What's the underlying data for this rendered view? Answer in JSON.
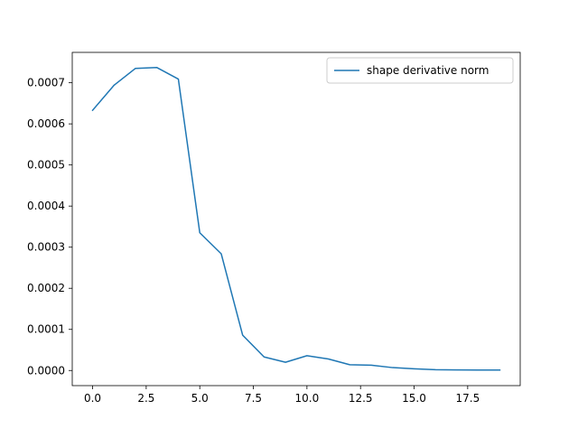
{
  "chart_data": {
    "type": "line",
    "x": [
      0,
      1,
      2,
      3,
      4,
      5,
      6,
      7,
      8,
      9,
      10,
      11,
      12,
      13,
      14,
      15,
      16,
      17,
      18,
      19
    ],
    "series": [
      {
        "name": "shape derivative norm",
        "color": "#1f77b4",
        "values": [
          0.000633,
          0.000694,
          0.000735,
          0.000737,
          0.000709,
          0.000335,
          0.000284,
          8.6e-05,
          3.3e-05,
          2e-05,
          3.6e-05,
          2.8e-05,
          1.4e-05,
          1.3e-05,
          7e-06,
          4e-06,
          2e-06,
          1.5e-06,
          1.2e-06,
          1e-06
        ]
      }
    ],
    "xlim": [
      -0.95,
      19.95
    ],
    "ylim": [
      -3.68e-05,
      0.0007739
    ],
    "xticks": [
      0.0,
      2.5,
      5.0,
      7.5,
      10.0,
      12.5,
      15.0,
      17.5
    ],
    "xtick_labels": [
      "0.0",
      "2.5",
      "5.0",
      "7.5",
      "10.0",
      "12.5",
      "15.0",
      "17.5"
    ],
    "yticks": [
      0.0,
      0.0001,
      0.0002,
      0.0003,
      0.0004,
      0.0005,
      0.0006,
      0.0007
    ],
    "ytick_labels": [
      "0.0000",
      "0.0001",
      "0.0002",
      "0.0003",
      "0.0004",
      "0.0005",
      "0.0006",
      "0.0007"
    ],
    "title": "",
    "xlabel": "",
    "ylabel": "",
    "grid": false,
    "legend_position": "top-right"
  }
}
